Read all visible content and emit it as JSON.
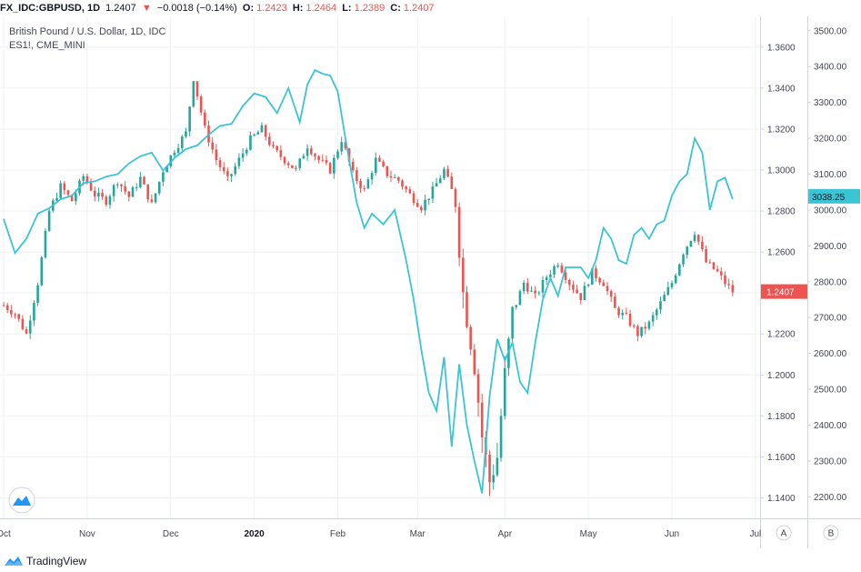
{
  "header": {
    "symbol": "FX_IDC:GBPUSD, 1D",
    "last": "1.2407",
    "arrow": "▼",
    "change": "−0.0018 (−0.14%)",
    "o_label": "O:",
    "o": "1.2423",
    "h_label": "H:",
    "h": "1.2464",
    "l_label": "L:",
    "l": "1.2389",
    "c_label": "C:",
    "c": "1.2407"
  },
  "legend": {
    "main": "British Pound / U.S. Dollar, 1D, IDC",
    "overlay": "ES1!, CME_MINI"
  },
  "footer": {
    "brand": "TradingView"
  },
  "axis_buttons": {
    "a": "A",
    "b": "B"
  },
  "colors": {
    "up": "#26a69a",
    "down": "#ef5350",
    "overlay": "#3ac4d4",
    "grid": "#eef0f3",
    "border": "#d1d4dc"
  },
  "chart_data": {
    "type": "candlestick",
    "x_ticks": [
      "Oct",
      "Nov",
      "Dec",
      "2020",
      "Feb",
      "Mar",
      "Apr",
      "May",
      "Jun",
      "Jul"
    ],
    "left_axis": {
      "name": "GBPUSD",
      "ylim": [
        1.13,
        1.375
      ],
      "ticks": [
        "1.1400",
        "1.1600",
        "1.1800",
        "1.2000",
        "1.2200",
        "1.2400",
        "1.2600",
        "1.2800",
        "1.3000",
        "1.3200",
        "1.3400",
        "1.3600"
      ],
      "last_label": "1.2407",
      "last_value": 1.2407
    },
    "right_axis": {
      "name": "ES1!",
      "ylim": [
        2140,
        3540
      ],
      "ticks": [
        "2200.00",
        "2300.00",
        "2400.00",
        "2500.00",
        "2600.00",
        "2700.00",
        "2800.00",
        "2900.00",
        "3000.00",
        "3100.00",
        "3200.00",
        "3300.00",
        "3400.00",
        "3500.00"
      ],
      "last_label": "3038.25",
      "last_value": 3038.25
    },
    "gbpusd_close_path": [
      [
        0,
        1.234
      ],
      [
        3,
        1.23
      ],
      [
        6,
        1.22
      ],
      [
        9,
        1.245
      ],
      [
        12,
        1.28
      ],
      [
        15,
        1.292
      ],
      [
        18,
        1.285
      ],
      [
        21,
        1.297
      ],
      [
        24,
        1.288
      ],
      [
        27,
        1.285
      ],
      [
        30,
        1.295
      ],
      [
        33,
        1.287
      ],
      [
        36,
        1.296
      ],
      [
        39,
        1.283
      ],
      [
        42,
        1.3
      ],
      [
        45,
        1.31
      ],
      [
        48,
        1.318
      ],
      [
        50,
        1.345
      ],
      [
        53,
        1.32
      ],
      [
        56,
        1.305
      ],
      [
        59,
        1.295
      ],
      [
        62,
        1.305
      ],
      [
        65,
        1.315
      ],
      [
        68,
        1.32
      ],
      [
        71,
        1.31
      ],
      [
        74,
        1.305
      ],
      [
        77,
        1.3
      ],
      [
        80,
        1.312
      ],
      [
        83,
        1.305
      ],
      [
        86,
        1.3
      ],
      [
        89,
        1.315
      ],
      [
        92,
        1.298
      ],
      [
        95,
        1.29
      ],
      [
        98,
        1.305
      ],
      [
        101,
        1.298
      ],
      [
        104,
        1.295
      ],
      [
        107,
        1.288
      ],
      [
        110,
        1.282
      ],
      [
        113,
        1.29
      ],
      [
        116,
        1.3
      ],
      [
        119,
        1.285
      ],
      [
        121,
        1.24
      ],
      [
        124,
        1.205
      ],
      [
        126,
        1.17
      ],
      [
        128,
        1.148
      ],
      [
        130,
        1.16
      ],
      [
        132,
        1.2
      ],
      [
        134,
        1.23
      ],
      [
        137,
        1.245
      ],
      [
        140,
        1.238
      ],
      [
        143,
        1.248
      ],
      [
        146,
        1.255
      ],
      [
        149,
        1.245
      ],
      [
        152,
        1.238
      ],
      [
        155,
        1.25
      ],
      [
        158,
        1.245
      ],
      [
        161,
        1.232
      ],
      [
        164,
        1.228
      ],
      [
        167,
        1.22
      ],
      [
        170,
        1.225
      ],
      [
        173,
        1.235
      ],
      [
        176,
        1.245
      ],
      [
        179,
        1.26
      ],
      [
        182,
        1.27
      ],
      [
        185,
        1.255
      ],
      [
        188,
        1.25
      ],
      [
        190,
        1.245
      ],
      [
        192,
        1.2407
      ]
    ],
    "es_path": [
      [
        0,
        2975
      ],
      [
        3,
        2880
      ],
      [
        6,
        2920
      ],
      [
        9,
        2990
      ],
      [
        12,
        3005
      ],
      [
        15,
        3030
      ],
      [
        18,
        3040
      ],
      [
        21,
        3075
      ],
      [
        24,
        3080
      ],
      [
        27,
        3093
      ],
      [
        30,
        3100
      ],
      [
        33,
        3130
      ],
      [
        36,
        3150
      ],
      [
        39,
        3160
      ],
      [
        42,
        3110
      ],
      [
        45,
        3145
      ],
      [
        48,
        3170
      ],
      [
        51,
        3180
      ],
      [
        54,
        3210
      ],
      [
        57,
        3235
      ],
      [
        60,
        3240
      ],
      [
        63,
        3290
      ],
      [
        66,
        3325
      ],
      [
        69,
        3315
      ],
      [
        72,
        3270
      ],
      [
        75,
        3340
      ],
      [
        78,
        3245
      ],
      [
        80,
        3350
      ],
      [
        82,
        3390
      ],
      [
        84,
        3380
      ],
      [
        86,
        3375
      ],
      [
        88,
        3330
      ],
      [
        90,
        3200
      ],
      [
        93,
        3020
      ],
      [
        95,
        2950
      ],
      [
        97,
        2990
      ],
      [
        100,
        2960
      ],
      [
        103,
        3000
      ],
      [
        106,
        2860
      ],
      [
        108,
        2750
      ],
      [
        110,
        2610
      ],
      [
        112,
        2490
      ],
      [
        114,
        2440
      ],
      [
        116,
        2590
      ],
      [
        118,
        2340
      ],
      [
        120,
        2570
      ],
      [
        122,
        2400
      ],
      [
        124,
        2300
      ],
      [
        126,
        2210
      ],
      [
        128,
        2480
      ],
      [
        130,
        2640
      ],
      [
        132,
        2580
      ],
      [
        134,
        2630
      ],
      [
        136,
        2520
      ],
      [
        138,
        2490
      ],
      [
        140,
        2630
      ],
      [
        142,
        2750
      ],
      [
        144,
        2810
      ],
      [
        146,
        2760
      ],
      [
        148,
        2840
      ],
      [
        150,
        2840
      ],
      [
        152,
        2840
      ],
      [
        154,
        2810
      ],
      [
        156,
        2860
      ],
      [
        158,
        2950
      ],
      [
        160,
        2920
      ],
      [
        162,
        2860
      ],
      [
        164,
        2850
      ],
      [
        166,
        2930
      ],
      [
        168,
        2950
      ],
      [
        170,
        2920
      ],
      [
        172,
        2960
      ],
      [
        174,
        2970
      ],
      [
        176,
        3040
      ],
      [
        178,
        3080
      ],
      [
        180,
        3100
      ],
      [
        182,
        3200
      ],
      [
        184,
        3160
      ],
      [
        186,
        3000
      ],
      [
        188,
        3080
      ],
      [
        190,
        3090
      ],
      [
        192,
        3030
      ]
    ]
  }
}
